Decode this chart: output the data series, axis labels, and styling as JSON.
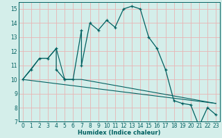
{
  "xlabel": "Humidex (Indice chaleur)",
  "bg_color": "#d4eeea",
  "grid_color": "#e8b4b4",
  "line_color": "#006060",
  "xlim": [
    -0.5,
    23.5
  ],
  "ylim": [
    7,
    15.5
  ],
  "xticks": [
    0,
    1,
    2,
    3,
    4,
    5,
    6,
    7,
    8,
    9,
    10,
    11,
    12,
    13,
    14,
    15,
    16,
    17,
    18,
    19,
    20,
    21,
    22,
    23
  ],
  "yticks": [
    7,
    8,
    9,
    10,
    11,
    12,
    13,
    14,
    15
  ],
  "main_x": [
    0,
    1,
    2,
    3,
    4,
    4,
    5,
    5,
    6,
    7,
    7,
    8,
    9,
    10,
    11,
    12,
    13,
    14,
    15,
    16,
    17,
    18,
    19,
    20,
    21,
    22,
    23
  ],
  "main_y": [
    10,
    10.7,
    11.5,
    11.5,
    12.2,
    10.7,
    10.0,
    10.0,
    10.0,
    13.5,
    11.0,
    14.0,
    13.5,
    14.2,
    13.7,
    15.0,
    15.2,
    15.0,
    13.0,
    12.2,
    10.7,
    8.5,
    8.3,
    8.2,
    6.7,
    8.0,
    7.5
  ],
  "trend_x": [
    0,
    23
  ],
  "trend_y": [
    10.0,
    8.3
  ],
  "env_x": [
    0,
    2,
    3,
    4,
    5,
    7,
    23
  ],
  "env_y": [
    10.0,
    11.5,
    11.5,
    12.2,
    10.0,
    10.0,
    8.3
  ]
}
